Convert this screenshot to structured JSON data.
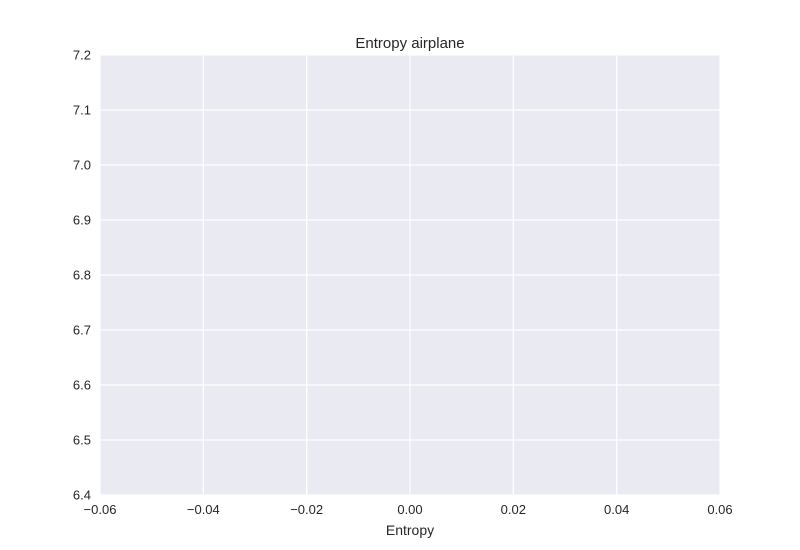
{
  "chart_data": {
    "type": "scatter",
    "title": "Entropy  airplane",
    "xlabel": "Entropy",
    "ylabel": "",
    "xlim": [
      -0.06,
      0.06
    ],
    "ylim": [
      6.4,
      7.2
    ],
    "x_ticks": [
      "−0.06",
      "−0.04",
      "−0.02",
      "0.00",
      "0.02",
      "0.04",
      "0.06"
    ],
    "x_tick_values": [
      -0.06,
      -0.04,
      -0.02,
      0.0,
      0.02,
      0.04,
      0.06
    ],
    "y_ticks": [
      "6.4",
      "6.5",
      "6.6",
      "6.7",
      "6.8",
      "6.9",
      "7.0",
      "7.1",
      "7.2"
    ],
    "y_tick_values": [
      6.4,
      6.5,
      6.6,
      6.7,
      6.8,
      6.9,
      7.0,
      7.1,
      7.2
    ],
    "series": [],
    "grid": true,
    "colors": {
      "plot_background": "#eaeaf2",
      "grid": "#ffffff",
      "text": "#262626"
    }
  }
}
